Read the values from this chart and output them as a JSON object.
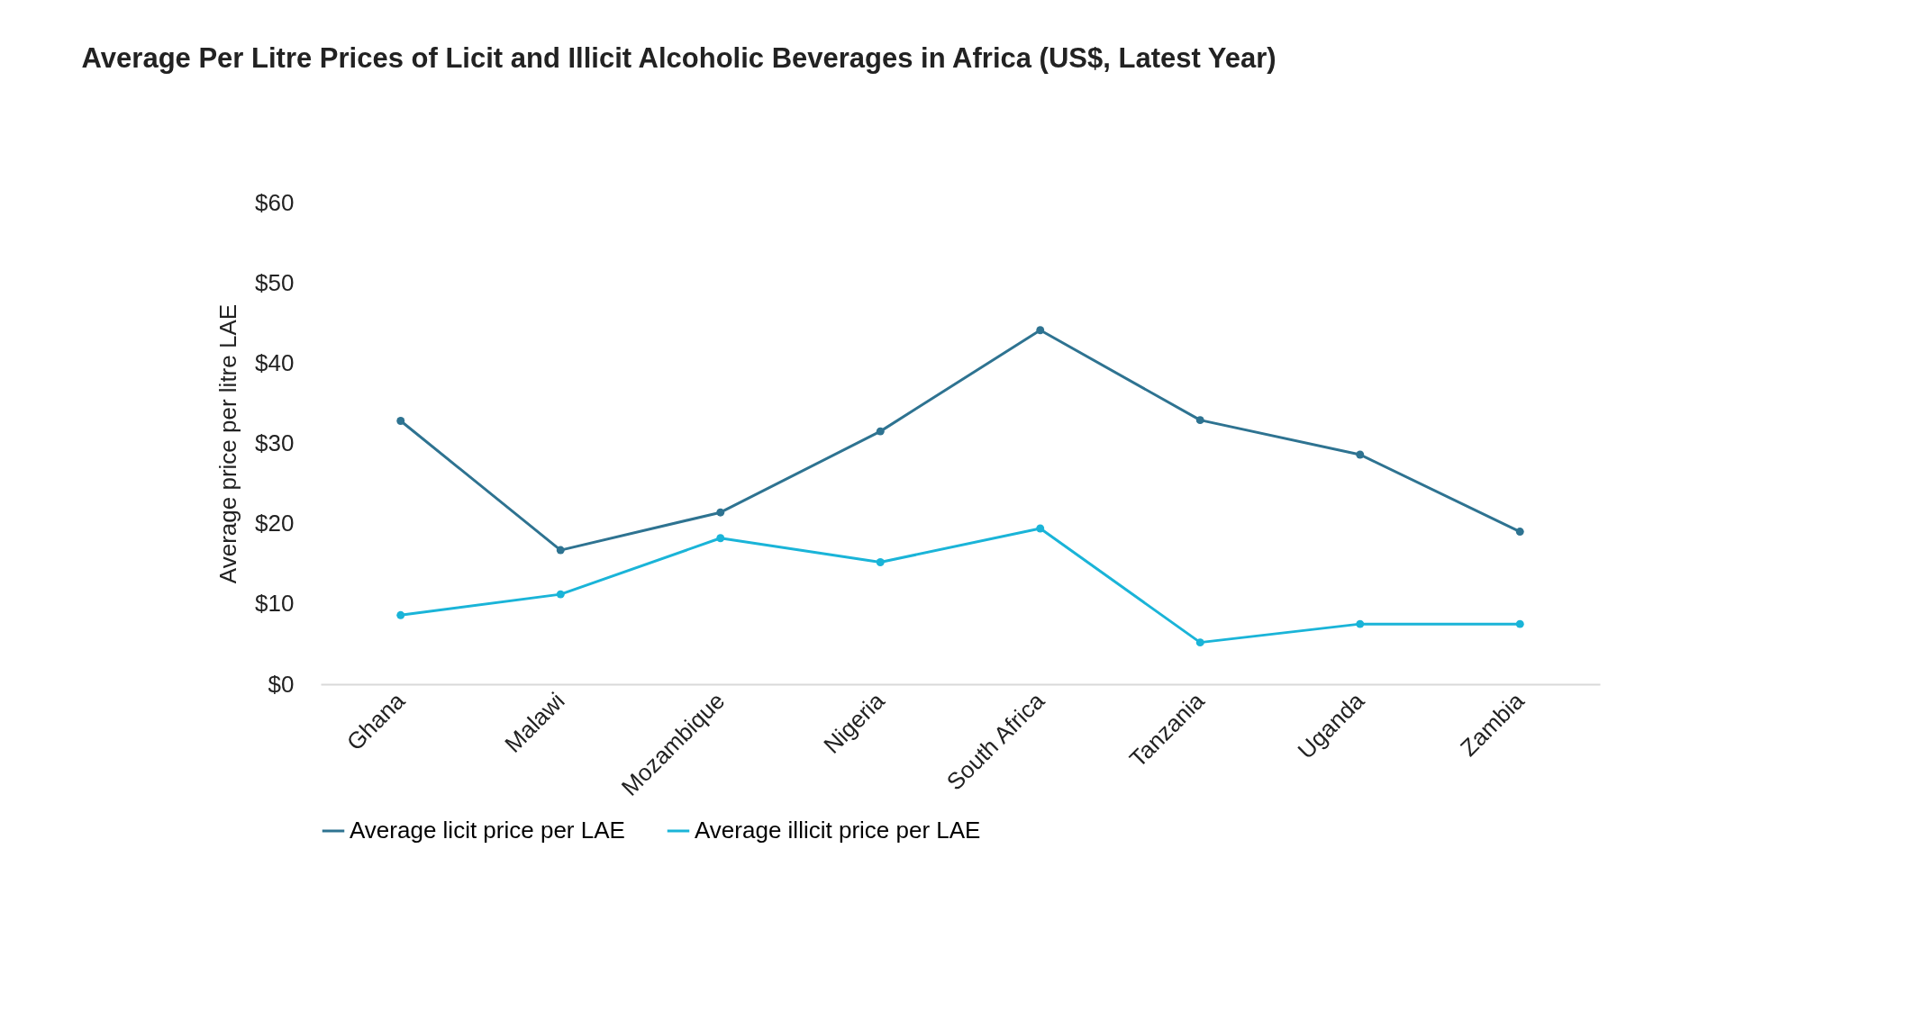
{
  "chart_data": {
    "type": "line",
    "title": "Average Per Litre Prices of Licit and Illicit Alcoholic Beverages in Africa (US$, Latest Year)",
    "ylabel": "Average price per litre LAE",
    "categories": [
      "Ghana",
      "Malawi",
      "Mozambique",
      "Nigeria",
      "South Africa",
      "Tanzania",
      "Uganda",
      "Zambia"
    ],
    "series": [
      {
        "name": "Average licit price per LAE",
        "color": "#2e7391",
        "values": [
          32.8,
          16.7,
          21.4,
          31.5,
          44.1,
          32.9,
          28.6,
          19.0
        ]
      },
      {
        "name": "Average illicit price per LAE",
        "color": "#1ab4d8",
        "values": [
          8.6,
          11.2,
          18.2,
          15.2,
          19.4,
          5.2,
          7.5,
          7.5
        ]
      }
    ],
    "ylim": [
      0,
      60
    ],
    "yticks": [
      {
        "value": 0,
        "label": "$0"
      },
      {
        "value": 10,
        "label": "$10"
      },
      {
        "value": 20,
        "label": "$20"
      },
      {
        "value": 30,
        "label": "$30"
      },
      {
        "value": 40,
        "label": "$40"
      },
      {
        "value": 50,
        "label": "$50"
      },
      {
        "value": 60,
        "label": "$60"
      }
    ],
    "grid": false,
    "legend": "bottom",
    "marker": "circle",
    "line_style": "solid"
  }
}
